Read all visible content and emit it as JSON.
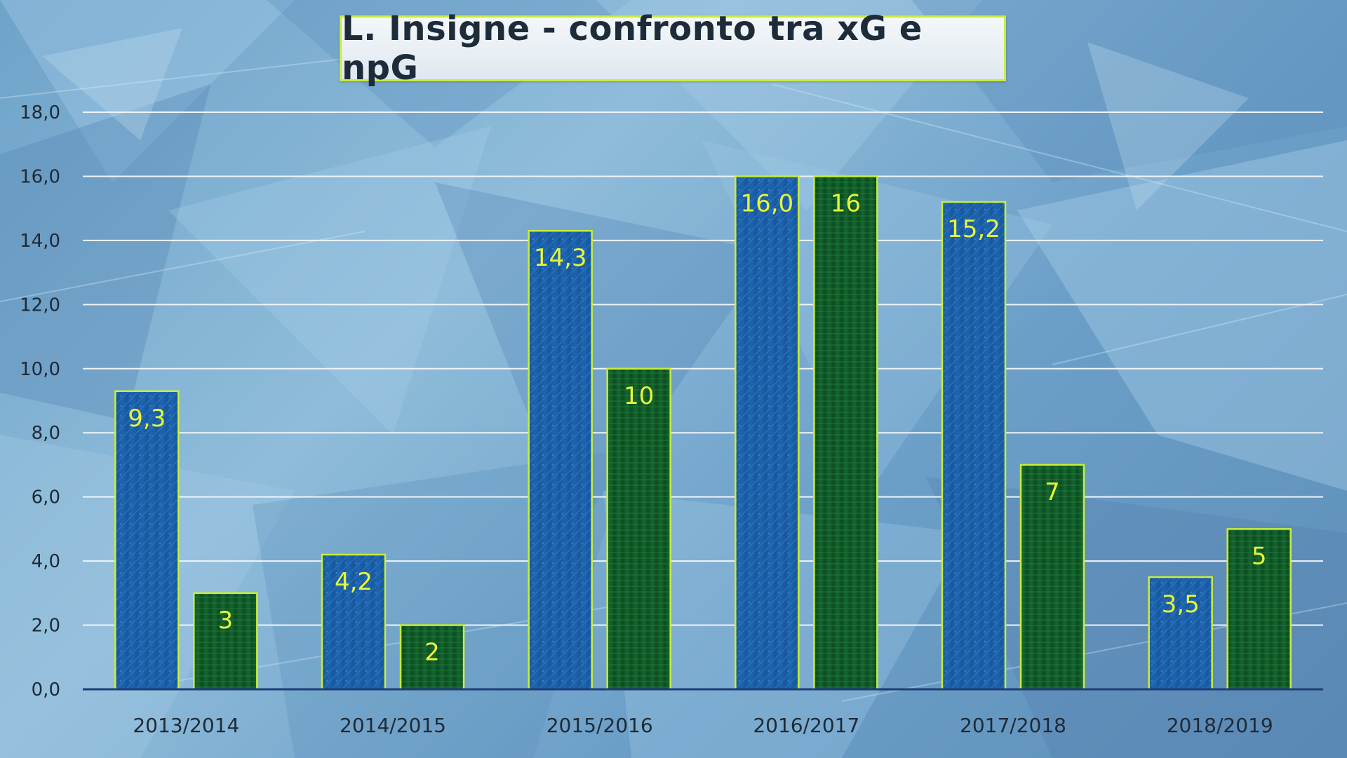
{
  "chart_data": {
    "type": "bar",
    "title": "L. Insigne - confronto tra xG e npG",
    "categories": [
      "2013/2014",
      "2014/2015",
      "2015/2016",
      "2016/2017",
      "2017/2018",
      "2018/2019"
    ],
    "series": [
      {
        "values": [
          9.3,
          4.2,
          14.3,
          16.0,
          15.2,
          3.5
        ],
        "value_labels": [
          "9,3",
          "4,2",
          "14,3",
          "16,0",
          "15,2",
          "3,5"
        ],
        "color": "#1d64b0"
      },
      {
        "values": [
          3,
          2,
          10,
          16,
          7,
          5
        ],
        "value_labels": [
          "3",
          "2",
          "10",
          "16",
          "7",
          "5"
        ],
        "color": "#15672f"
      }
    ],
    "ylim": [
      0,
      18
    ],
    "yticks": [
      0,
      2,
      4,
      6,
      8,
      10,
      12,
      14,
      16,
      18
    ],
    "ytick_labels": [
      "0,0",
      "2,0",
      "4,0",
      "6,0",
      "8,0",
      "10,0",
      "12,0",
      "14,0",
      "16,0",
      "18,0"
    ],
    "xlabel": "",
    "ylabel": "",
    "grid": true,
    "legend": "none",
    "bar_border_color": "#c8ee3a",
    "value_label_color": "#e6f53a"
  }
}
